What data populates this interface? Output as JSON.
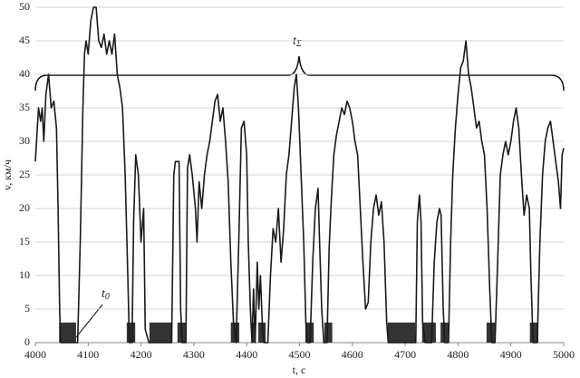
{
  "chart_data": {
    "type": "line",
    "x_label": "t, c",
    "y_label": "v, км/ч",
    "annotations": [
      {
        "text": "t",
        "subscript": "Σ"
      },
      {
        "text": "t",
        "subscript": "0"
      }
    ],
    "x": [
      4000,
      4003,
      4006,
      4010,
      4013,
      4016,
      4020,
      4025,
      4030,
      4035,
      4040,
      4043,
      4046,
      4048,
      4080,
      4085,
      4090,
      4093,
      4096,
      4100,
      4105,
      4110,
      4115,
      4120,
      4125,
      4130,
      4135,
      4140,
      4145,
      4150,
      4155,
      4160,
      4165,
      4170,
      4175,
      4178,
      4183,
      4186,
      4190,
      4195,
      4200,
      4205,
      4208,
      4215,
      4258,
      4262,
      4265,
      4272,
      4275,
      4278,
      4285,
      4288,
      4292,
      4297,
      4303,
      4306,
      4310,
      4315,
      4320,
      4325,
      4330,
      4335,
      4340,
      4345,
      4350,
      4355,
      4360,
      4365,
      4370,
      4375,
      4380,
      4385,
      4390,
      4395,
      4400,
      4403,
      4407,
      4410,
      4413,
      4416,
      4420,
      4423,
      4426,
      4430,
      4433,
      4440,
      4445,
      4450,
      4455,
      4460,
      4465,
      4470,
      4475,
      4480,
      4485,
      4490,
      4494,
      4498,
      4503,
      4508,
      4512,
      4515,
      4520,
      4525,
      4530,
      4535,
      4538,
      4542,
      4546,
      4552,
      4556,
      4560,
      4565,
      4570,
      4575,
      4580,
      4585,
      4590,
      4595,
      4600,
      4605,
      4610,
      4615,
      4620,
      4625,
      4630,
      4635,
      4640,
      4645,
      4650,
      4655,
      4660,
      4665,
      4668,
      4720,
      4723,
      4727,
      4730,
      4733,
      4738,
      4750,
      4755,
      4760,
      4765,
      4768,
      4772,
      4775,
      4782,
      4786,
      4790,
      4795,
      4800,
      4805,
      4810,
      4815,
      4820,
      4825,
      4830,
      4835,
      4840,
      4845,
      4850,
      4855,
      4860,
      4864,
      4870,
      4875,
      4880,
      4885,
      4890,
      4895,
      4900,
      4905,
      4910,
      4915,
      4920,
      4925,
      4930,
      4935,
      4938,
      4942,
      4950,
      4955,
      4960,
      4965,
      4970,
      4975,
      4980,
      4985,
      4990,
      4994,
      4997,
      5000
    ],
    "values": [
      27,
      31,
      35,
      33,
      35,
      30,
      37,
      40,
      35,
      36,
      32,
      20,
      5,
      0,
      0,
      15,
      35,
      43,
      45,
      43,
      48,
      50,
      50,
      45,
      44,
      46,
      43,
      45,
      43,
      46,
      40,
      38,
      35,
      25,
      10,
      0,
      0,
      18,
      28,
      25,
      15,
      20,
      2,
      0,
      0,
      25,
      27,
      27,
      5,
      0,
      0,
      26,
      28,
      25,
      20,
      15,
      24,
      20,
      25,
      28,
      30,
      33,
      36,
      37,
      33,
      35,
      30,
      24,
      12,
      3,
      0,
      15,
      32,
      33,
      28,
      15,
      5,
      0,
      8,
      0,
      12,
      5,
      10,
      2,
      0,
      0,
      10,
      17,
      15,
      20,
      12,
      17,
      25,
      28,
      33,
      38,
      40,
      35,
      25,
      15,
      3,
      0,
      0,
      12,
      20,
      23,
      15,
      5,
      0,
      0,
      14,
      21,
      28,
      31,
      33,
      35,
      34,
      36,
      35,
      33,
      30,
      28,
      20,
      12,
      5,
      6,
      15,
      20,
      22,
      19,
      21,
      15,
      3,
      0,
      0,
      18,
      22,
      18,
      3,
      0,
      0,
      12,
      18,
      20,
      19,
      5,
      0,
      0,
      15,
      25,
      32,
      37,
      41,
      42,
      45,
      40,
      38,
      35,
      32,
      33,
      30,
      28,
      20,
      8,
      0,
      0,
      12,
      25,
      28,
      30,
      28,
      30,
      33,
      35,
      32,
      25,
      19,
      22,
      20,
      10,
      0,
      0,
      15,
      25,
      30,
      32,
      33,
      30,
      27,
      24,
      20,
      28,
      29
    ],
    "color": "#1a1a1a",
    "stops": {
      "height": 3,
      "color": "#333333",
      "intervals": [
        [
          4045,
          4077
        ],
        [
          4173,
          4189
        ],
        [
          4216,
          4259
        ],
        [
          4269,
          4286
        ],
        [
          4370,
          4386
        ],
        [
          4410,
          4417
        ],
        [
          4422,
          4436
        ],
        [
          4511,
          4527
        ],
        [
          4547,
          4562
        ],
        [
          4667,
          4719
        ],
        [
          4732,
          4758
        ],
        [
          4767,
          4782
        ],
        [
          4854,
          4870
        ],
        [
          4936,
          4952
        ]
      ]
    },
    "xlim": [
      4000,
      5000
    ],
    "xticks": [
      4000,
      4100,
      4200,
      4300,
      4400,
      4500,
      4600,
      4700,
      4800,
      4900,
      5000
    ],
    "ylim": [
      0,
      50
    ],
    "yticks": [
      0,
      5,
      10,
      15,
      20,
      25,
      30,
      35,
      40,
      45,
      50
    ],
    "grid": true
  }
}
